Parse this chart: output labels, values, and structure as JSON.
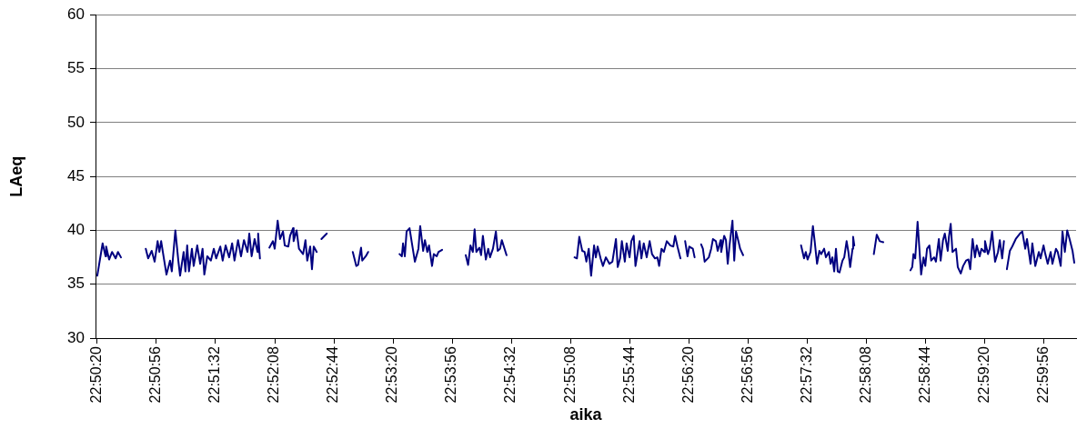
{
  "chart_data": {
    "type": "line",
    "xlabel": "aika",
    "ylabel": "LAeq",
    "color": "#000080",
    "grid": "y",
    "legend": false,
    "marker": "none",
    "line_style": "solid",
    "xlim": [
      22.8386,
      23.0044
    ],
    "ylim": [
      30,
      60
    ],
    "yticks": [
      30,
      35,
      40,
      45,
      50,
      55,
      60
    ],
    "xticks": [
      {
        "value": 22.8389,
        "label": "22:50:20"
      },
      {
        "value": 22.8489,
        "label": "22:50:56"
      },
      {
        "value": 22.8589,
        "label": "22:51:32"
      },
      {
        "value": 22.8689,
        "label": "22:52:08"
      },
      {
        "value": 22.8789,
        "label": "22:52:44"
      },
      {
        "value": 22.8889,
        "label": "22:53:20"
      },
      {
        "value": 22.8989,
        "label": "22:53:56"
      },
      {
        "value": 22.9089,
        "label": "22:54:32"
      },
      {
        "value": 22.9189,
        "label": "22:55:08"
      },
      {
        "value": 22.9289,
        "label": "22:55:44"
      },
      {
        "value": 22.9389,
        "label": "22:56:20"
      },
      {
        "value": 22.9489,
        "label": "22:56:56"
      },
      {
        "value": 22.9589,
        "label": "22:57:32"
      },
      {
        "value": 22.9689,
        "label": "22:58:08"
      },
      {
        "value": 22.9789,
        "label": "22:58:44"
      },
      {
        "value": 22.9889,
        "label": "22:59:20"
      },
      {
        "value": 22.9989,
        "label": "22:59:56"
      }
    ],
    "x": [
      22.8389,
      22.8398,
      22.8403,
      22.8404,
      22.8409,
      22.8414,
      22.842,
      22.8424,
      22.8429,
      22.844,
      22.8471,
      22.8475,
      22.8481,
      22.8486,
      22.8491,
      22.8494,
      22.8497,
      22.8501,
      22.8506,
      22.8512,
      22.8515,
      22.8521,
      22.8526,
      22.8529,
      22.8535,
      22.8538,
      22.8541,
      22.8544,
      22.8549,
      22.8552,
      22.8558,
      22.8563,
      22.8567,
      22.857,
      22.8575,
      22.8581,
      22.8586,
      22.859,
      22.8597,
      22.8601,
      22.8606,
      22.8612,
      22.8617,
      22.8621,
      22.8627,
      22.8632,
      22.8637,
      22.8643,
      22.8646,
      22.865,
      22.8655,
      22.866,
      22.8661,
      22.8664,
      22.867,
      22.868,
      22.8686,
      22.8689,
      22.8694,
      22.8698,
      22.8703,
      22.8706,
      22.8712,
      22.8715,
      22.872,
      22.8721,
      22.8726,
      22.873,
      22.8737,
      22.8741,
      22.8744,
      22.8749,
      22.8752,
      22.8755,
      22.876,
      22.8765,
      22.8768,
      22.8777,
      22.88,
      22.8821,
      22.8827,
      22.883,
      22.8835,
      22.8837,
      22.8843,
      22.8847,
      22.886,
      22.89,
      22.8904,
      22.8906,
      22.8909,
      22.8912,
      22.8917,
      22.8921,
      22.8926,
      22.8932,
      22.8935,
      22.894,
      22.8943,
      22.8947,
      22.895,
      22.8955,
      22.8958,
      22.8963,
      22.8966,
      22.8969,
      22.8972,
      22.899,
      22.9012,
      22.9016,
      22.902,
      22.9024,
      22.9027,
      22.903,
      22.9035,
      22.9038,
      22.9041,
      22.9046,
      22.905,
      22.9053,
      22.9058,
      22.9063,
      22.9066,
      22.907,
      22.9073,
      22.9081,
      22.912,
      22.9196,
      22.92,
      22.9204,
      22.9209,
      22.9213,
      22.9216,
      22.922,
      22.9224,
      22.9229,
      22.9232,
      22.9235,
      22.924,
      22.9244,
      22.9249,
      22.9255,
      22.926,
      22.9266,
      22.9269,
      22.9273,
      22.9276,
      22.9281,
      22.9284,
      22.9289,
      22.9292,
      22.9296,
      22.9299,
      22.9306,
      22.9309,
      22.9313,
      22.9318,
      22.9323,
      22.9327,
      22.9332,
      22.9336,
      22.9339,
      22.9343,
      22.9347,
      22.9352,
      22.9358,
      22.9363,
      22.9366,
      22.937,
      22.9375,
      22.9378,
      22.9383,
      22.9387,
      22.939,
      22.9396,
      22.9399,
      22.9403,
      22.941,
      22.9413,
      22.9416,
      22.9423,
      22.9427,
      22.943,
      22.9435,
      22.9438,
      22.9443,
      22.9444,
      22.9449,
      22.9452,
      22.9455,
      22.9458,
      22.9463,
      22.9466,
      22.9469,
      22.9473,
      22.9476,
      22.9481,
      22.952,
      22.9579,
      22.9584,
      22.9587,
      22.959,
      22.9595,
      22.9599,
      22.9602,
      22.9606,
      22.961,
      22.9613,
      22.9618,
      22.9621,
      22.9626,
      22.9629,
      22.9632,
      22.9635,
      22.9638,
      22.9641,
      22.9644,
      22.9649,
      22.9652,
      22.9656,
      22.9659,
      22.9662,
      22.9666,
      22.9667,
      22.9669,
      22.969,
      22.9702,
      22.9707,
      22.9712,
      22.9713,
      22.9718,
      22.974,
      22.9764,
      22.9767,
      22.9769,
      22.9772,
      22.9776,
      22.9782,
      22.9786,
      22.9789,
      22.9792,
      22.9796,
      22.9799,
      22.9804,
      22.9807,
      22.9812,
      22.9815,
      22.9819,
      22.9822,
      22.9827,
      22.9829,
      22.9832,
      22.9835,
      22.9841,
      22.9844,
      22.9849,
      22.9853,
      22.9858,
      22.9862,
      22.9865,
      22.9869,
      22.9873,
      22.9876,
      22.9881,
      22.9884,
      22.9889,
      22.989,
      22.9895,
      22.9898,
      22.9902,
      22.9907,
      22.9912,
      22.9915,
      22.9919,
      22.9922,
      22.9924,
      22.9927,
      22.9932,
      22.9936,
      22.9942,
      22.9949,
      22.9953,
      22.9958,
      22.9961,
      22.9967,
      22.997,
      22.9975,
      22.9981,
      22.9984,
      22.9989,
      22.9992,
      22.9996,
      23.0001,
      23.0004,
      23.001,
      23.0013,
      23.0018,
      23.0021,
      23.0025,
      23.0029,
      23.0033,
      23.0038,
      23.0041
    ],
    "values": [
      35.8,
      38.8,
      37.6,
      38.5,
      37.3,
      38.0,
      37.4,
      38.0,
      37.5,
      null,
      38.3,
      37.4,
      38.1,
      37.1,
      39.0,
      38.0,
      39.0,
      37.6,
      35.9,
      37.2,
      36.2,
      40.0,
      37.2,
      35.8,
      38.0,
      36.2,
      38.6,
      36.2,
      38.3,
      36.7,
      38.6,
      36.9,
      38.3,
      35.9,
      37.6,
      37.2,
      38.3,
      37.4,
      38.5,
      37.2,
      38.6,
      37.5,
      38.8,
      37.2,
      39.1,
      37.6,
      39.1,
      38.0,
      39.7,
      37.6,
      39.2,
      38.0,
      39.7,
      37.4,
      null,
      38.4,
      39.0,
      38.3,
      40.9,
      39.2,
      39.9,
      38.6,
      38.5,
      39.5,
      40.2,
      39.0,
      40.0,
      38.3,
      37.8,
      39.1,
      37.2,
      38.5,
      36.4,
      38.5,
      38.0,
      null,
      39.2,
      39.7,
      null,
      38.0,
      36.7,
      36.8,
      38.4,
      37.2,
      37.6,
      38.0,
      null,
      37.8,
      37.6,
      38.8,
      37.6,
      39.9,
      40.2,
      38.8,
      37.1,
      38.3,
      40.4,
      38.1,
      39.1,
      38.0,
      38.6,
      36.7,
      37.8,
      37.6,
      38.0,
      38.1,
      38.2,
      null,
      37.7,
      36.8,
      38.6,
      38.0,
      40.1,
      38.0,
      38.4,
      37.7,
      39.5,
      37.3,
      38.3,
      37.5,
      38.3,
      39.9,
      38.1,
      38.3,
      39.1,
      37.7,
      null,
      37.5,
      37.4,
      39.4,
      38.1,
      38.0,
      37.1,
      38.3,
      35.8,
      38.6,
      37.5,
      38.5,
      37.4,
      36.7,
      37.5,
      36.9,
      37.1,
      39.2,
      36.6,
      37.4,
      39.0,
      37.1,
      38.8,
      37.5,
      39.0,
      39.5,
      36.7,
      39.0,
      37.4,
      38.8,
      37.5,
      39.0,
      37.8,
      37.4,
      37.5,
      36.7,
      38.3,
      38.0,
      39.0,
      38.6,
      38.5,
      39.5,
      38.5,
      37.4,
      null,
      39.0,
      37.6,
      38.5,
      38.3,
      37.5,
      null,
      38.7,
      38.3,
      37.1,
      37.5,
      38.3,
      39.2,
      39.0,
      38.1,
      39.1,
      38.0,
      39.5,
      39.1,
      36.9,
      38.6,
      40.9,
      37.2,
      39.9,
      39.0,
      38.3,
      37.7,
      null,
      38.6,
      37.4,
      38.0,
      37.3,
      38.0,
      40.4,
      39.0,
      36.9,
      38.1,
      37.8,
      38.3,
      37.5,
      38.0,
      36.9,
      37.5,
      36.2,
      38.3,
      36.2,
      36.1,
      37.2,
      37.5,
      39.0,
      38.0,
      36.6,
      38.3,
      39.4,
      38.6,
      null,
      37.8,
      39.6,
      39.0,
      39.0,
      38.9,
      null,
      36.3,
      36.6,
      37.8,
      37.4,
      40.8,
      35.9,
      37.5,
      36.7,
      38.3,
      38.6,
      37.2,
      37.5,
      37.1,
      39.2,
      37.2,
      39.1,
      39.7,
      38.1,
      39.4,
      40.6,
      38.0,
      38.3,
      36.6,
      36.0,
      36.7,
      37.2,
      37.3,
      36.4,
      39.2,
      37.5,
      38.6,
      37.6,
      38.3,
      38.0,
      39.0,
      37.8,
      38.3,
      39.9,
      37.1,
      38.0,
      39.1,
      37.4,
      39.0,
      null,
      36.4,
      38.1,
      38.5,
      39.2,
      39.7,
      39.9,
      38.3,
      39.2,
      36.9,
      38.8,
      36.7,
      38.0,
      37.4,
      38.6,
      37.8,
      36.9,
      38.0,
      36.9,
      38.3,
      38.0,
      36.7,
      39.9,
      38.0,
      40.0,
      39.2,
      38.1,
      37.0
    ]
  }
}
